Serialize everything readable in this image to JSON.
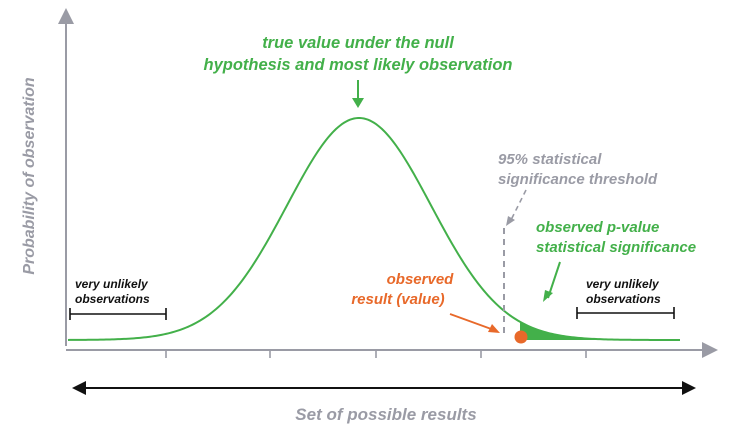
{
  "labels": {
    "y_axis": "Probability of observation",
    "x_axis": "Set of possible results",
    "peak_line1": "true value under the null",
    "peak_line2": "hypothesis and most likely observation",
    "threshold_line1": "95% statistical",
    "threshold_line2": "significance threshold",
    "pvalue_line1": "observed p-value",
    "pvalue_line2": "statistical significance",
    "observed_line1": "observed",
    "observed_line2": "result (value)",
    "left_tail_line1": "very unlikely",
    "left_tail_line2": "observations",
    "right_tail_line1": "very unlikely",
    "right_tail_line2": "observations"
  },
  "colors": {
    "curve": "#43b04a",
    "fill": "#43b04a",
    "axis": "#9a9ba5",
    "threshold": "#9a9ba5",
    "observed": "#e8692a",
    "text_dark": "#111111"
  },
  "chart_data": {
    "type": "area",
    "curve": "normal-distribution",
    "shaded_region": "right tail beyond observed result",
    "threshold_marker": "dashed vertical line",
    "observed_marker": "orange dot on x-axis"
  }
}
